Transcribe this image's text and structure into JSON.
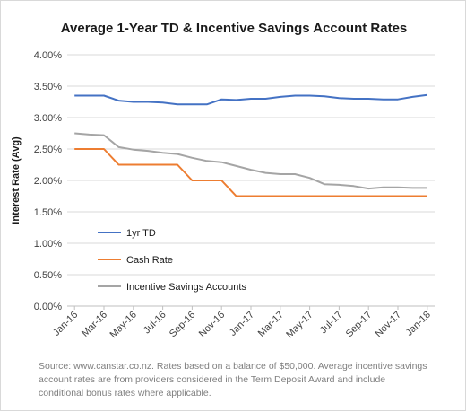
{
  "chart_data": {
    "type": "line",
    "title": "Average 1-Year TD & Incentive Savings Account Rates",
    "ylabel": "Interest Rate (Avg)",
    "xlabel": "",
    "ylim": [
      0,
      4
    ],
    "y_ticks": [
      "0.00%",
      "0.50%",
      "1.00%",
      "1.50%",
      "2.00%",
      "2.50%",
      "3.00%",
      "3.50%",
      "4.00%"
    ],
    "x_ticks": [
      "Jan-16",
      "Mar-16",
      "May-16",
      "Jul-16",
      "Sep-16",
      "Nov-16",
      "Jan-17",
      "Mar-17",
      "May-17",
      "Jul-17",
      "Sep-17",
      "Nov-17",
      "Jan-18"
    ],
    "x": [
      "Jan-16",
      "Feb-16",
      "Mar-16",
      "Apr-16",
      "May-16",
      "Jun-16",
      "Jul-16",
      "Aug-16",
      "Sep-16",
      "Oct-16",
      "Nov-16",
      "Dec-16",
      "Jan-17",
      "Feb-17",
      "Mar-17",
      "Apr-17",
      "May-17",
      "Jun-17",
      "Jul-17",
      "Aug-17",
      "Sep-17",
      "Oct-17",
      "Nov-17",
      "Dec-17",
      "Jan-18"
    ],
    "grid": true,
    "legend_position": "inside-bottom-left",
    "series": [
      {
        "name": "1yr TD",
        "color": "#4472c4",
        "values": [
          3.35,
          3.35,
          3.35,
          3.27,
          3.25,
          3.25,
          3.24,
          3.21,
          3.21,
          3.21,
          3.29,
          3.28,
          3.3,
          3.3,
          3.33,
          3.35,
          3.35,
          3.34,
          3.31,
          3.3,
          3.3,
          3.29,
          3.29,
          3.33,
          3.36
        ]
      },
      {
        "name": "Cash Rate",
        "color": "#ed7d31",
        "values": [
          2.5,
          2.5,
          2.5,
          2.25,
          2.25,
          2.25,
          2.25,
          2.25,
          2.0,
          2.0,
          2.0,
          1.75,
          1.75,
          1.75,
          1.75,
          1.75,
          1.75,
          1.75,
          1.75,
          1.75,
          1.75,
          1.75,
          1.75,
          1.75,
          1.75
        ]
      },
      {
        "name": "Incentive Savings Accounts",
        "color": "#a5a5a5",
        "values": [
          2.75,
          2.73,
          2.72,
          2.53,
          2.49,
          2.47,
          2.44,
          2.42,
          2.36,
          2.31,
          2.29,
          2.23,
          2.17,
          2.12,
          2.1,
          2.1,
          2.04,
          1.94,
          1.93,
          1.91,
          1.87,
          1.89,
          1.89,
          1.88,
          1.88
        ]
      }
    ]
  },
  "source_note": "Source: www.canstar.co.nz. Rates based on a balance of $50,000. Average incentive savings account rates are from providers considered in the Term Deposit Award and include conditional bonus rates where applicable."
}
